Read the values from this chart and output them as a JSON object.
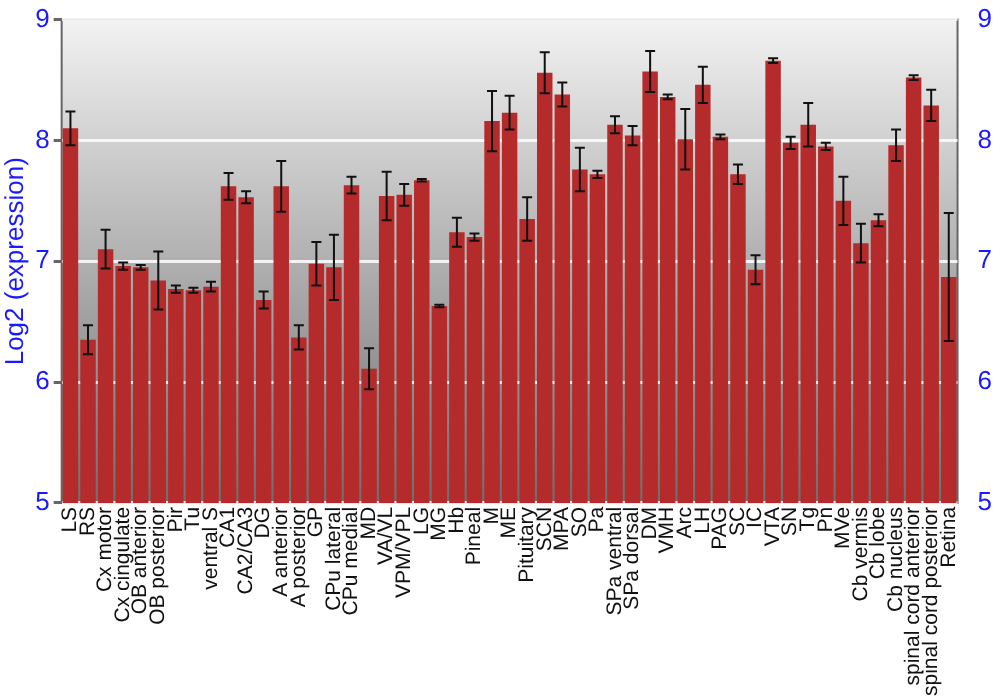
{
  "chart_data": {
    "type": "bar",
    "ylabel": "Log2 (expression)",
    "categories": [
      "LS",
      "RS",
      "Cx motor",
      "Cx cingulate",
      "OB anterior",
      "OB posterior",
      "Pir",
      "Tu",
      "ventral S",
      "CA1",
      "CA2/CA3",
      "DG",
      "A anterior",
      "A posterior",
      "GP",
      "CPu lateral",
      "CPu medial",
      "MD",
      "VA/VL",
      "VPM/VPL",
      "LG",
      "MG",
      "Hb",
      "Pineal",
      "M",
      "ME",
      "Pituitary",
      "SCN",
      "MPA",
      "SO",
      "Pa",
      "SPa ventral",
      "SPa dorsal",
      "DM",
      "VMH",
      "Arc",
      "LH",
      "PAG",
      "SC",
      "IC",
      "VTA",
      "SN",
      "Tg",
      "Pn",
      "MVe",
      "Cb vermis",
      "Cb lobe",
      "Cb nucleus",
      "spinal cord anterior",
      "spinal cord posterior",
      "Retina"
    ],
    "values": [
      8.1,
      6.35,
      7.1,
      6.96,
      6.95,
      6.84,
      6.77,
      6.76,
      6.79,
      7.62,
      7.53,
      6.68,
      7.62,
      6.37,
      6.98,
      6.95,
      7.63,
      6.11,
      7.54,
      7.55,
      7.67,
      6.63,
      7.24,
      7.2,
      8.16,
      8.23,
      7.35,
      8.56,
      8.38,
      7.76,
      7.72,
      8.13,
      8.04,
      8.57,
      8.36,
      8.01,
      8.46,
      8.03,
      7.72,
      6.93,
      8.66,
      7.98,
      8.13,
      7.95,
      7.5,
      7.15,
      7.34,
      7.96,
      8.52,
      8.29,
      6.87
    ],
    "errors": [
      0.14,
      0.12,
      0.16,
      0.03,
      0.02,
      0.24,
      0.03,
      0.02,
      0.04,
      0.11,
      0.05,
      0.07,
      0.21,
      0.1,
      0.18,
      0.27,
      0.07,
      0.17,
      0.2,
      0.09,
      0.01,
      0.01,
      0.12,
      0.03,
      0.25,
      0.14,
      0.18,
      0.17,
      0.1,
      0.18,
      0.03,
      0.07,
      0.08,
      0.17,
      0.02,
      0.25,
      0.15,
      0.02,
      0.08,
      0.12,
      0.02,
      0.05,
      0.18,
      0.03,
      0.2,
      0.16,
      0.05,
      0.13,
      0.02,
      0.13,
      0.53
    ],
    "color": "#b52a2a",
    "ylim": [
      5,
      9
    ],
    "yticks": [
      5,
      6,
      7,
      8,
      9
    ],
    "y2lim": [
      5,
      9
    ],
    "y2ticks": [
      5,
      6,
      7,
      8,
      9
    ],
    "grid": "y"
  }
}
